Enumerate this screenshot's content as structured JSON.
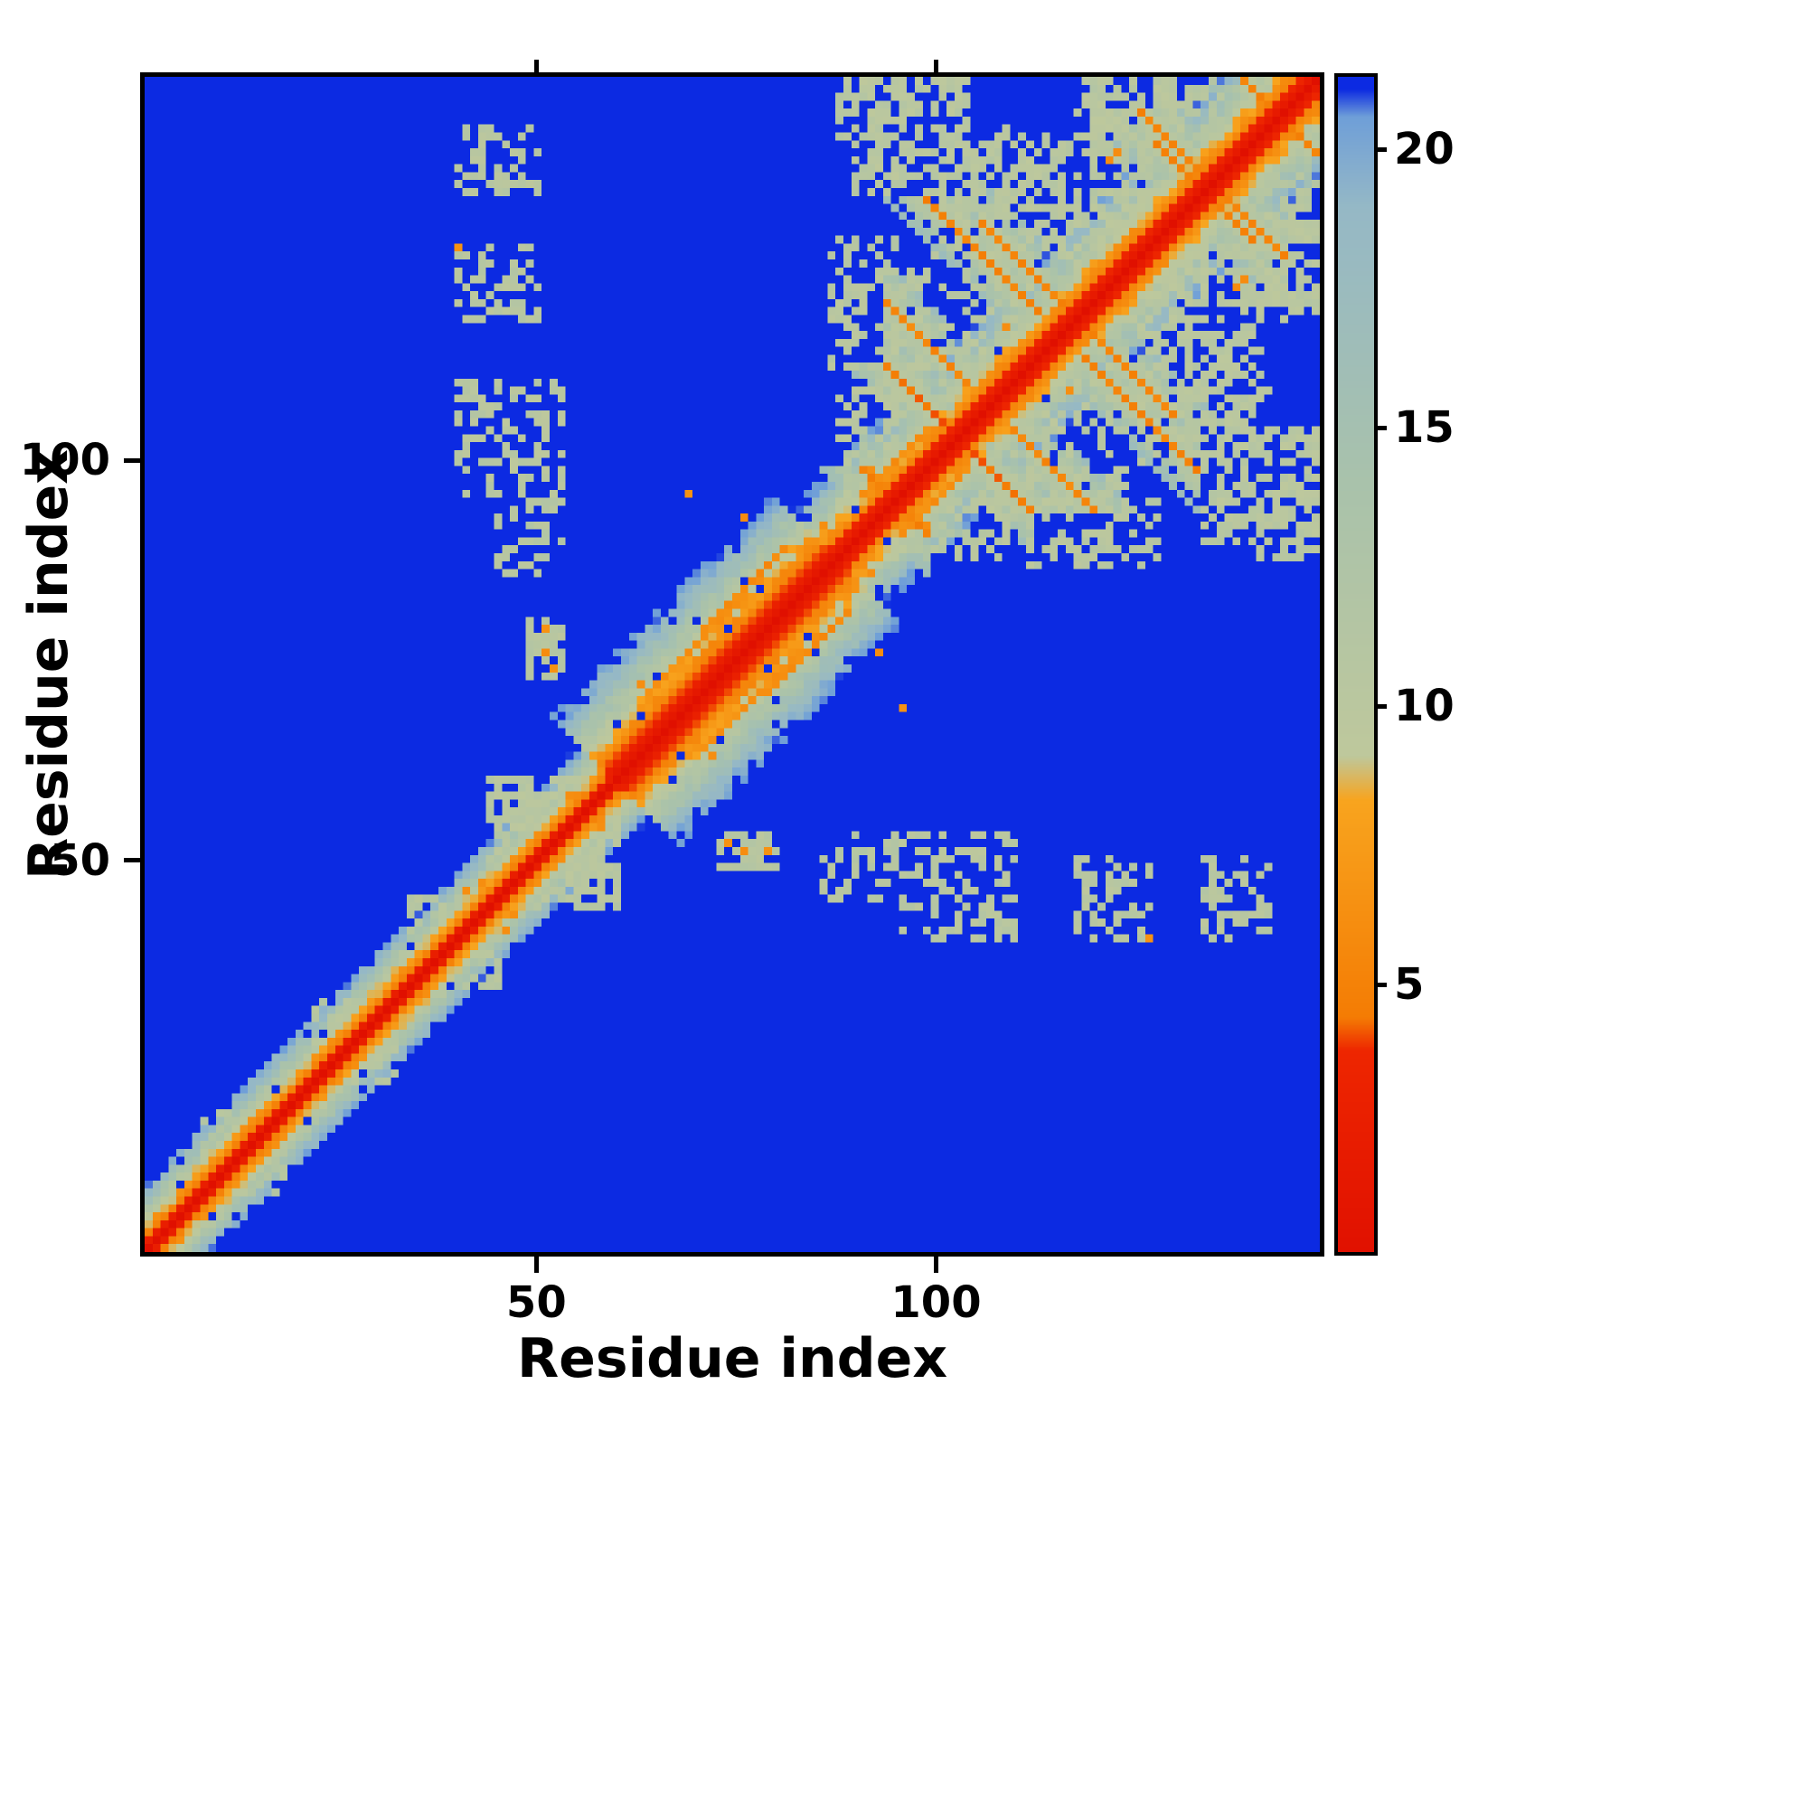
{
  "chart_data": {
    "type": "heatmap",
    "title": "",
    "xlabel": "Residue index",
    "ylabel": "Residue index",
    "x_range": [
      1,
      148
    ],
    "y_range": [
      1,
      148
    ],
    "n": 148,
    "background_value": 25,
    "x_ticks": [
      {
        "v": 50,
        "label": "50"
      },
      {
        "v": 100,
        "label": "100"
      }
    ],
    "y_ticks": [
      {
        "v": 50,
        "label": "50"
      },
      {
        "v": 100,
        "label": "100"
      }
    ],
    "colorbar": {
      "vmin": 0.2,
      "vmax": 21.3,
      "ticks": [
        {
          "v": 5,
          "label": "5"
        },
        {
          "v": 10,
          "label": "10"
        },
        {
          "v": 15,
          "label": "15"
        },
        {
          "v": 20,
          "label": "20"
        }
      ]
    },
    "colormap": [
      {
        "v": 0.0,
        "c": "#e01000"
      },
      {
        "v": 3.8,
        "c": "#ee2600"
      },
      {
        "v": 4.4,
        "c": "#f47c04"
      },
      {
        "v": 8.3,
        "c": "#f8a41e"
      },
      {
        "v": 9.1,
        "c": "#bec89c"
      },
      {
        "v": 14.0,
        "c": "#a9c2ab"
      },
      {
        "v": 19.0,
        "c": "#95b8c6"
      },
      {
        "v": 20.6,
        "c": "#6f9fd8"
      },
      {
        "v": 21.1,
        "c": "#0c2ae2"
      },
      {
        "v": 26.0,
        "c": "#0c2ae2"
      }
    ],
    "segments": [
      {
        "from": 0,
        "to": 60,
        "rate": 2.5
      },
      {
        "from": 60,
        "to": 88,
        "rate": 1.35
      },
      {
        "from": 88,
        "to": 149,
        "rate": 1.8
      }
    ],
    "anti_streaks": [
      {
        "i": 103,
        "j": 103,
        "len": 18,
        "v": 4.6
      },
      {
        "i": 95,
        "j": 95,
        "len": 8,
        "v": 5.0
      },
      {
        "i": 134,
        "j": 134,
        "len": 12,
        "v": 4.8
      },
      {
        "i": 144,
        "j": 143,
        "len": 8,
        "v": 5.0
      },
      {
        "i": 106,
        "j": 126,
        "len": 14,
        "v": 5.0
      },
      {
        "i": 115,
        "j": 99,
        "len": 10,
        "v": 5.5
      },
      {
        "i": 125,
        "j": 111,
        "len": 11,
        "v": 5.2
      },
      {
        "i": 130,
        "j": 140,
        "len": 9,
        "v": 5.2
      }
    ],
    "par_streaks": [
      {
        "i": 68,
        "j": 72,
        "len": 16,
        "v": 5.5
      },
      {
        "i": 70,
        "j": 77,
        "len": 12,
        "v": 6.5
      },
      {
        "i": 76,
        "j": 84,
        "len": 10,
        "v": 6.0
      },
      {
        "i": 95,
        "j": 100,
        "len": 8,
        "v": 6.0
      }
    ],
    "patches": [
      {
        "x0": 40,
        "x1": 50,
        "y0": 134,
        "y1": 142,
        "v": 10.5,
        "density": 0.45
      },
      {
        "x0": 40,
        "x1": 50,
        "y0": 118,
        "y1": 127,
        "v": 10.5,
        "density": 0.4
      },
      {
        "x0": 40,
        "x1": 53,
        "y0": 96,
        "y1": 110,
        "v": 10.5,
        "density": 0.45
      },
      {
        "x0": 45,
        "x1": 53,
        "y0": 86,
        "y1": 95,
        "v": 10.8,
        "density": 0.35
      },
      {
        "x0": 49,
        "x1": 53,
        "y0": 73,
        "y1": 80,
        "v": 10.8,
        "density": 0.5
      },
      {
        "x0": 88,
        "x1": 98,
        "y0": 96,
        "y1": 110,
        "v": 10.5,
        "density": 0.5
      },
      {
        "x0": 87,
        "x1": 95,
        "y0": 112,
        "y1": 128,
        "v": 10.5,
        "density": 0.38
      },
      {
        "x0": 90,
        "x1": 104,
        "y0": 134,
        "y1": 148,
        "v": 10.3,
        "density": 0.5
      },
      {
        "x0": 102,
        "x1": 118,
        "y0": 126,
        "y1": 142,
        "v": 10.4,
        "density": 0.42
      },
      {
        "x0": 106,
        "x1": 124,
        "y0": 94,
        "y1": 112,
        "v": 10.4,
        "density": 0.38
      },
      {
        "x0": 120,
        "x1": 136,
        "y0": 118,
        "y1": 134,
        "v": 10.4,
        "density": 0.45
      },
      {
        "x0": 126,
        "x1": 140,
        "y0": 100,
        "y1": 116,
        "v": 10.4,
        "density": 0.42
      },
      {
        "x0": 136,
        "x1": 148,
        "y0": 120,
        "y1": 136,
        "v": 10.5,
        "density": 0.4
      },
      {
        "x0": 118,
        "x1": 130,
        "y0": 138,
        "y1": 148,
        "v": 10.4,
        "density": 0.45
      },
      {
        "x0": 140,
        "x1": 148,
        "y0": 88,
        "y1": 100,
        "v": 10.6,
        "density": 0.35
      },
      {
        "x0": 88,
        "x1": 96,
        "y0": 88,
        "y1": 96,
        "v": 10.5,
        "density": 0.5
      },
      {
        "x0": 22,
        "x1": 28,
        "y0": 26,
        "y1": 32,
        "v": 10.8,
        "density": 0.5
      },
      {
        "x0": 34,
        "x1": 40,
        "y0": 38,
        "y1": 45,
        "v": 10.8,
        "density": 0.45
      },
      {
        "x0": 44,
        "x1": 58,
        "y0": 44,
        "y1": 60,
        "v": 10.6,
        "density": 0.5
      },
      {
        "x0": 8,
        "x1": 14,
        "y0": 12,
        "y1": 18,
        "v": 11.0,
        "density": 0.4
      }
    ],
    "dots": [
      {
        "i": 74,
        "j": 52,
        "v": 6.5
      },
      {
        "i": 76,
        "j": 51,
        "v": 6.0
      },
      {
        "i": 51,
        "j": 76,
        "v": 6.2
      },
      {
        "i": 93,
        "j": 76,
        "v": 6.0
      },
      {
        "i": 127,
        "j": 40,
        "v": 6.5
      },
      {
        "i": 139,
        "j": 123,
        "v": 6.0
      },
      {
        "i": 122,
        "j": 138,
        "v": 6.0
      },
      {
        "i": 96,
        "j": 69,
        "v": 6.5
      },
      {
        "i": 79,
        "j": 51,
        "v": 6.5
      }
    ]
  }
}
